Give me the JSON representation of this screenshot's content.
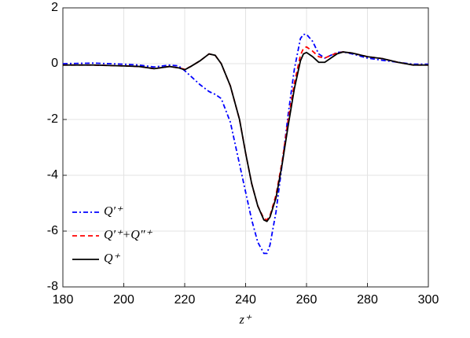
{
  "chart_data": {
    "type": "line",
    "x_label": "z⁺",
    "x": [
      180,
      190,
      200,
      205,
      210,
      215,
      218,
      220,
      222,
      225,
      228,
      230,
      232,
      235,
      238,
      240,
      242,
      244,
      246,
      247,
      248,
      250,
      252,
      254,
      256,
      258,
      259,
      260,
      262,
      264,
      266,
      268,
      270,
      272,
      275,
      280,
      285,
      290,
      295,
      300
    ],
    "series": [
      {
        "name": "Q′⁺",
        "color": "#0000ff",
        "linestyle": "-.",
        "values": [
          0,
          0.02,
          -0.02,
          -0.05,
          -0.12,
          -0.05,
          -0.08,
          -0.25,
          -0.45,
          -0.75,
          -1.0,
          -1.1,
          -1.25,
          -2.1,
          -3.6,
          -4.6,
          -5.6,
          -6.4,
          -6.8,
          -6.8,
          -6.5,
          -5.3,
          -3.6,
          -1.8,
          -0.2,
          0.9,
          1.05,
          1.05,
          0.8,
          0.35,
          0.2,
          0.3,
          0.4,
          0.42,
          0.35,
          0.2,
          0.12,
          0.05,
          -0.02,
          -0.02
        ]
      },
      {
        "name": "Q′⁺+Q″⁺",
        "color": "#ff0000",
        "linestyle": "--",
        "values": [
          -0.05,
          -0.05,
          -0.08,
          -0.1,
          -0.18,
          -0.1,
          -0.15,
          -0.2,
          -0.1,
          0.1,
          0.35,
          0.3,
          0.0,
          -0.8,
          -2.0,
          -3.2,
          -4.3,
          -5.1,
          -5.55,
          -5.6,
          -5.45,
          -4.7,
          -3.5,
          -2.0,
          -0.7,
          0.3,
          0.55,
          0.6,
          0.45,
          0.25,
          0.2,
          0.3,
          0.38,
          0.42,
          0.38,
          0.25,
          0.18,
          0.05,
          -0.05,
          -0.05
        ]
      },
      {
        "name": "Q⁺",
        "color": "#000000",
        "linestyle": "-",
        "values": [
          -0.05,
          -0.05,
          -0.08,
          -0.1,
          -0.18,
          -0.1,
          -0.15,
          -0.22,
          -0.1,
          0.1,
          0.35,
          0.3,
          0.0,
          -0.8,
          -2.0,
          -3.2,
          -4.3,
          -5.1,
          -5.6,
          -5.65,
          -5.5,
          -4.8,
          -3.6,
          -2.2,
          -0.9,
          0.1,
          0.35,
          0.4,
          0.25,
          0.05,
          0.05,
          0.2,
          0.35,
          0.42,
          0.38,
          0.25,
          0.18,
          0.05,
          -0.05,
          -0.05
        ]
      }
    ],
    "xlim": [
      180,
      300
    ],
    "xticks": [
      180,
      200,
      220,
      240,
      260,
      280,
      300
    ],
    "ylim": [
      -8,
      2
    ],
    "yticks": [
      -8,
      -6,
      -4,
      -2,
      0,
      2
    ],
    "grid": true,
    "legend": "lower left"
  }
}
